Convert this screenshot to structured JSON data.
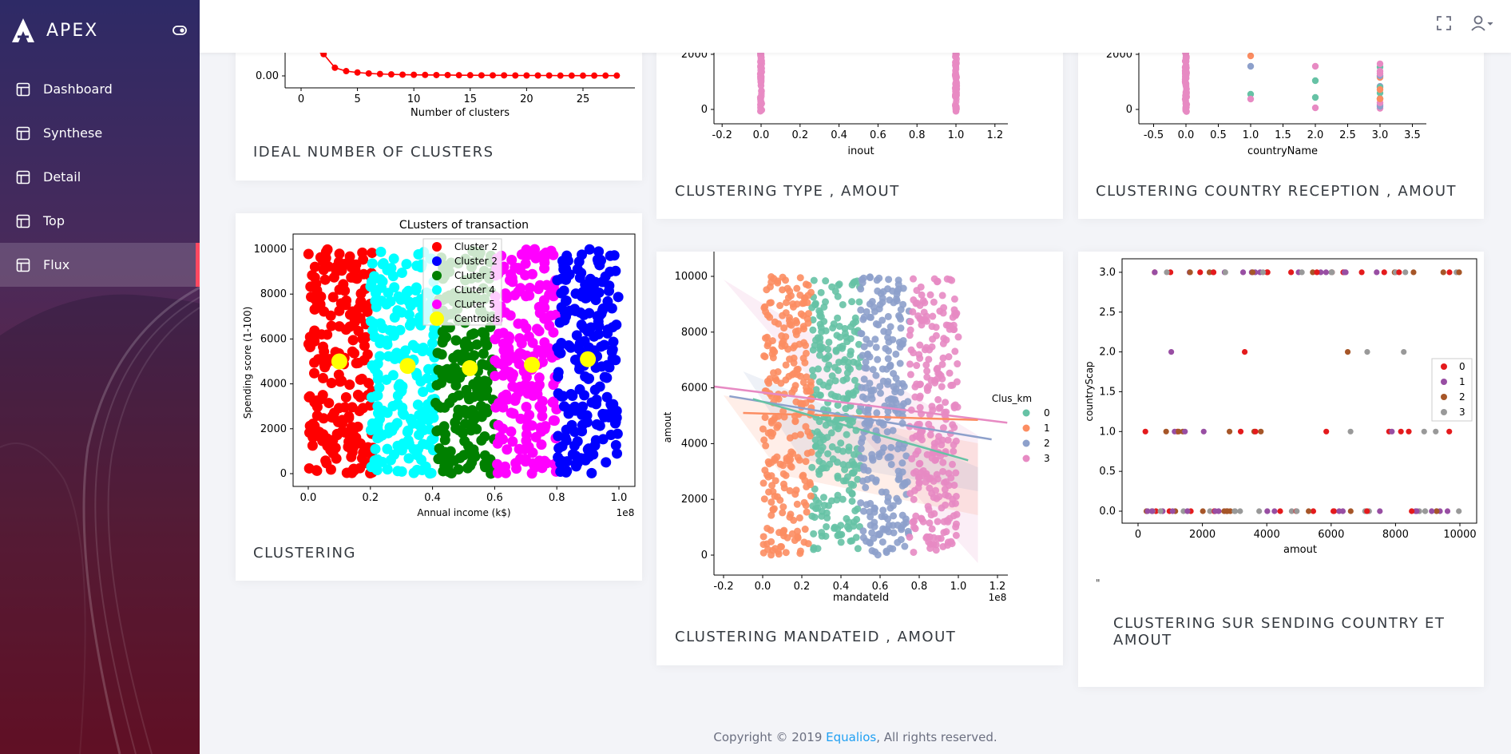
{
  "app": {
    "name": "APEX"
  },
  "sidebar": {
    "items": [
      {
        "label": "Dashboard",
        "icon": "layout-icon"
      },
      {
        "label": "Synthese",
        "icon": "layout-icon"
      },
      {
        "label": "Detail",
        "icon": "layout-icon"
      },
      {
        "label": "Top",
        "icon": "layout-icon"
      },
      {
        "label": "Flux",
        "icon": "layout-icon",
        "active": true
      }
    ]
  },
  "topbar": {
    "icons": [
      "expand-icon",
      "user-icon",
      "caret-down-icon"
    ]
  },
  "cards": {
    "ideal_clusters": {
      "title": "IDEAL NUMBER OF CLUSTERS"
    },
    "clustering_type": {
      "title": "CLUSTERING TYPE , AMOUT"
    },
    "clustering_country": {
      "title": "CLUSTERING COUNTRY RECEPTION , AMOUT"
    },
    "clustering": {
      "title": "CLUSTERING"
    },
    "clustering_mandate": {
      "title": "CLUSTERING MANDATEID , AMOUT"
    },
    "clustering_sending": {
      "title": "CLUSTERING SUR SENDING COUNTRY ET AMOUT",
      "stray_text": "\""
    }
  },
  "chart_data": [
    {
      "id": "elbow",
      "type": "line",
      "xlabel": "Number of clusters",
      "ylabel": "",
      "x_ticks": [
        "0",
        "5",
        "10",
        "15",
        "20",
        "25"
      ],
      "y_ticks": [
        "0.00"
      ],
      "x": [
        1,
        2,
        3,
        4,
        5,
        6,
        7,
        8,
        9,
        10,
        11,
        12,
        13,
        14,
        15,
        16,
        17,
        18,
        19,
        20,
        21,
        22,
        23,
        24,
        25,
        26,
        27,
        28
      ],
      "y": [
        0.2,
        0.16,
        0.06,
        0.035,
        0.025,
        0.018,
        0.014,
        0.011,
        0.009,
        0.008,
        0.007,
        0.006,
        0.006,
        0.005,
        0.005,
        0.004,
        0.004,
        0.004,
        0.003,
        0.003,
        0.003,
        0.003,
        0.002,
        0.002,
        0.002,
        0.002,
        0.002,
        0.002
      ],
      "color": "#ff0000"
    },
    {
      "id": "type_amout",
      "type": "scatter",
      "xlabel": "inout",
      "x_ticks": [
        "-0.2",
        "0.0",
        "0.2",
        "0.4",
        "0.6",
        "0.8",
        "1.0",
        "1.2"
      ],
      "y_ticks": [
        "2000",
        "0"
      ],
      "color": "#e78ac3"
    },
    {
      "id": "country_amout",
      "type": "scatter",
      "xlabel": "countryName",
      "x_ticks": [
        "-0.5",
        "0.0",
        "0.5",
        "1.0",
        "1.5",
        "2.0",
        "2.5",
        "3.0",
        "3.5"
      ],
      "y_ticks": [
        "2000",
        "0"
      ]
    },
    {
      "id": "clusters_transaction",
      "type": "scatter",
      "title": "CLusters of transaction",
      "xlabel": "Annual income (k$)",
      "ylabel": "Spending score (1-100)",
      "x_offset_label": "1e8",
      "x_ticks": [
        "0.0",
        "0.2",
        "0.4",
        "0.6",
        "0.8",
        "1.0"
      ],
      "y_ticks": [
        "10000",
        "8000",
        "6000",
        "4000",
        "2000",
        "0"
      ],
      "series": [
        {
          "name": "Cluster 2",
          "color": "#ff0000",
          "x_range": [
            0.0,
            0.21
          ]
        },
        {
          "name": "Cluster 2",
          "color": "#0000ff",
          "x_range": [
            0.8,
            1.0
          ]
        },
        {
          "name": "CLuter 3",
          "color": "#008000",
          "x_range": [
            0.41,
            0.6
          ]
        },
        {
          "name": "CLuter 4",
          "color": "#00ffff",
          "x_range": [
            0.2,
            0.41
          ]
        },
        {
          "name": "CLuter 5",
          "color": "#ff00ff",
          "x_range": [
            0.6,
            0.8
          ]
        },
        {
          "name": "Centroids",
          "color": "#ffff00"
        }
      ],
      "centroids": [
        [
          0.1,
          5000
        ],
        [
          0.32,
          4800
        ],
        [
          0.52,
          4700
        ],
        [
          0.72,
          4850
        ],
        [
          0.9,
          5100
        ]
      ]
    },
    {
      "id": "mandate_amout",
      "type": "scatter",
      "xlabel": "mandateId",
      "ylabel": "amout",
      "x_offset_label": "1e8",
      "x_ticks": [
        "-0.2",
        "0.0",
        "0.2",
        "0.4",
        "0.6",
        "0.8",
        "1.0",
        "1.2"
      ],
      "y_ticks": [
        "10000",
        "8000",
        "6000",
        "4000",
        "2000",
        "0"
      ],
      "legend_title": "Clus_km",
      "series": [
        {
          "name": "0",
          "color": "#66c2a5",
          "x_range": [
            0.25,
            0.5
          ]
        },
        {
          "name": "1",
          "color": "#fc8d62",
          "x_range": [
            0.0,
            0.25
          ]
        },
        {
          "name": "2",
          "color": "#8da0cb",
          "x_range": [
            0.5,
            0.75
          ]
        },
        {
          "name": "3",
          "color": "#e78ac3",
          "x_range": [
            0.75,
            1.0
          ]
        }
      ]
    },
    {
      "id": "sending_amout",
      "type": "scatter",
      "xlabel": "amout",
      "ylabel": "countryScap",
      "x_ticks": [
        "0",
        "2000",
        "4000",
        "6000",
        "8000",
        "10000"
      ],
      "y_ticks": [
        "3.0",
        "2.5",
        "2.0",
        "1.5",
        "1.0",
        "0.5",
        "0.0"
      ],
      "series": [
        {
          "name": "0",
          "color": "#e41a1c"
        },
        {
          "name": "1",
          "color": "#984ea3"
        },
        {
          "name": "2",
          "color": "#a65628"
        },
        {
          "name": "3",
          "color": "#999999"
        }
      ]
    }
  ],
  "footer": {
    "prefix": "Copyright © 2019 ",
    "link": "Equalios",
    "suffix": ", All rights reserved."
  }
}
